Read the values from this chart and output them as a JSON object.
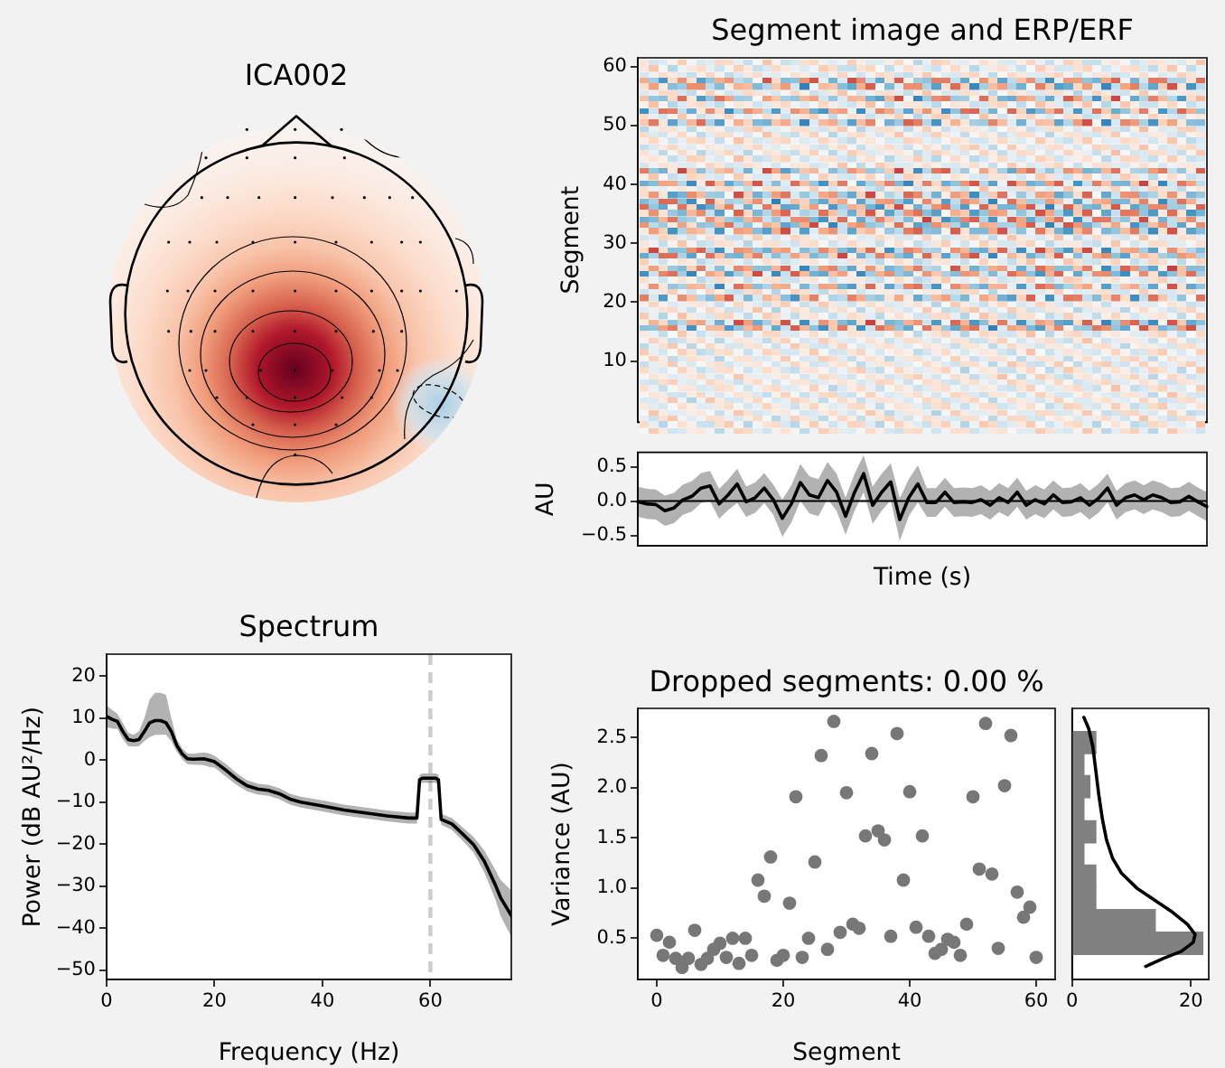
{
  "chart_data": [
    {
      "type": "other",
      "title": "ICA002"
    },
    {
      "type": "heatmap",
      "title": "Segment image and ERP/ERF",
      "ylabel": "Segment",
      "categories": [
        null
      ],
      "ylim": [
        -0.4,
        61.5
      ],
      "yticks": [
        10,
        20,
        30,
        40,
        50,
        60
      ]
    },
    {
      "type": "line",
      "xlabel": "Time (s)",
      "ylabel": "AU",
      "categories": [
        null,
        null,
        null,
        null,
        null,
        null,
        null,
        null,
        null,
        null,
        null,
        null,
        null,
        null,
        null,
        null,
        null,
        null,
        null,
        null,
        null,
        null,
        null,
        null,
        null,
        null,
        null,
        null,
        null,
        null,
        null,
        null,
        null,
        null,
        null,
        null,
        null,
        null,
        null,
        null,
        null,
        null,
        null,
        null,
        null,
        null,
        null,
        null,
        null,
        null,
        null,
        null,
        null,
        null,
        null,
        null,
        null,
        null,
        null,
        null,
        null,
        null,
        null,
        null
      ],
      "series": [
        {
          "color": "#000000",
          "values": [
            -0.01,
            -0.04,
            -0.05,
            -0.14,
            -0.1,
            0.02,
            0.07,
            0.19,
            0.22,
            -0.04,
            0.09,
            0.25,
            -0.01,
            0.05,
            0.19,
            0.02,
            -0.25,
            -0.04,
            0.27,
            0.09,
            0.05,
            0.3,
            0.13,
            -0.22,
            0.13,
            0.4,
            -0.06,
            0.13,
            0.28,
            -0.27,
            0.05,
            0.25,
            -0.02,
            -0.02,
            0.13,
            -0.02,
            -0.01,
            -0.02,
            0.02,
            -0.06,
            0.05,
            -0.02,
            0.13,
            -0.06,
            0.02,
            -0.04,
            0.09,
            -0.02,
            -0.01,
            0.05,
            -0.06,
            0.04,
            0.19,
            -0.06,
            0.05,
            0.09,
            0.02,
            0.09,
            0.05,
            -0.02,
            -0.01,
            0.07,
            -0.01,
            -0.08
          ],
          "upper": [
            0.21,
            0.18,
            0.17,
            0.08,
            0.12,
            0.24,
            0.29,
            0.41,
            0.44,
            0.18,
            0.31,
            0.47,
            0.21,
            0.27,
            0.41,
            0.24,
            0.02,
            0.23,
            0.54,
            0.36,
            0.32,
            0.57,
            0.4,
            0.05,
            0.4,
            0.67,
            0.21,
            0.4,
            0.55,
            0.04,
            0.32,
            0.52,
            0.19,
            0.19,
            0.34,
            0.19,
            0.2,
            0.19,
            0.23,
            0.15,
            0.26,
            0.19,
            0.34,
            0.15,
            0.23,
            0.17,
            0.3,
            0.19,
            0.2,
            0.26,
            0.15,
            0.25,
            0.4,
            0.15,
            0.26,
            0.3,
            0.23,
            0.3,
            0.26,
            0.19,
            0.2,
            0.28,
            0.2,
            0.13
          ],
          "lower": [
            -0.23,
            -0.26,
            -0.27,
            -0.36,
            -0.32,
            -0.2,
            -0.15,
            -0.03,
            0.0,
            -0.26,
            -0.13,
            -0.03,
            -0.23,
            -0.17,
            -0.03,
            -0.2,
            -0.52,
            -0.31,
            0.0,
            -0.18,
            -0.22,
            0.03,
            -0.14,
            -0.49,
            -0.14,
            0.13,
            -0.33,
            -0.14,
            0.01,
            -0.58,
            -0.22,
            -0.02,
            -0.23,
            -0.23,
            -0.08,
            -0.23,
            -0.22,
            -0.23,
            -0.19,
            -0.27,
            -0.16,
            -0.23,
            -0.08,
            -0.27,
            -0.19,
            -0.25,
            -0.12,
            -0.23,
            -0.22,
            -0.16,
            -0.27,
            -0.17,
            -0.02,
            -0.27,
            -0.16,
            -0.12,
            -0.19,
            -0.12,
            -0.16,
            -0.23,
            -0.22,
            -0.14,
            -0.22,
            -0.29
          ]
        }
      ],
      "ylim": [
        -0.65,
        0.71
      ],
      "yticks": [
        {
          "value": -0.5,
          "label": "−0.5"
        },
        {
          "value": 0,
          "label": "0.0"
        },
        0.5
      ],
      "ref_lines": [
        {
          "axis": "y",
          "value": 0,
          "color": "#000000"
        }
      ],
      "tick_labels": "y"
    },
    {
      "type": "line",
      "title": "Spectrum",
      "xlabel": "Frequency (Hz)",
      "ylabel": "Power (dB AU²/Hz)",
      "series": [
        {
          "color": "#000000",
          "x": [
            0,
            1,
            2,
            3,
            4,
            5,
            6,
            7,
            8,
            9,
            10,
            11,
            12,
            13,
            14,
            15,
            16,
            18,
            19,
            20,
            22,
            24,
            26,
            28,
            30,
            32,
            34,
            36,
            40,
            44,
            48,
            52,
            56,
            57.5,
            58,
            58.5,
            61,
            61.5,
            62,
            64,
            66,
            68,
            70,
            72,
            73,
            75
          ],
          "values": [
            10.4,
            9.7,
            9.2,
            6.8,
            4.9,
            4.6,
            4.9,
            6.8,
            8.9,
            9.4,
            9.4,
            8.9,
            6.8,
            3.5,
            1.5,
            0.3,
            0.2,
            0.3,
            0.0,
            -0.4,
            -2.3,
            -4.4,
            -6.1,
            -6.9,
            -7.2,
            -8.0,
            -9.3,
            -10.0,
            -10.9,
            -11.9,
            -12.6,
            -13.3,
            -13.8,
            -13.8,
            -4.7,
            -4.3,
            -4.3,
            -4.7,
            -14.1,
            -15.2,
            -17.6,
            -20.1,
            -24.1,
            -29.6,
            -32.7,
            -37.0
          ],
          "upper": [
            13.0,
            12.0,
            11.0,
            8.8,
            6.5,
            6.0,
            6.8,
            10.0,
            14.5,
            16.0,
            16.0,
            15.5,
            10.0,
            5.0,
            2.8,
            1.6,
            1.5,
            1.8,
            1.6,
            1.0,
            -0.8,
            -3.0,
            -4.8,
            -5.6,
            -5.9,
            -6.7,
            -8.0,
            -8.7,
            -9.6,
            -10.6,
            -11.3,
            -12.0,
            -12.5,
            -12.5,
            -3.5,
            -3.2,
            -3.2,
            -3.5,
            -12.8,
            -13.8,
            -16.0,
            -18.3,
            -21.5,
            -26.0,
            -28.5,
            -31.0
          ],
          "lower": [
            7.8,
            7.5,
            7.4,
            5.0,
            3.3,
            3.2,
            3.3,
            4.5,
            5.5,
            6.0,
            6.0,
            6.0,
            4.5,
            2.0,
            0.2,
            -1.0,
            -1.1,
            -1.2,
            -1.6,
            -1.8,
            -3.8,
            -5.8,
            -7.4,
            -8.2,
            -8.5,
            -9.3,
            -10.6,
            -11.3,
            -12.2,
            -13.2,
            -13.9,
            -14.6,
            -15.1,
            -15.1,
            -5.9,
            -5.4,
            -5.4,
            -5.9,
            -15.4,
            -16.6,
            -19.2,
            -22.0,
            -26.7,
            -33.0,
            -37.0,
            -42.1
          ]
        }
      ],
      "xlim": [
        0,
        75
      ],
      "xticks": [
        0,
        20,
        40,
        60
      ],
      "ylim": [
        -52.2,
        25.2
      ],
      "yticks": [
        {
          "value": -50,
          "label": "−50"
        },
        {
          "value": -40,
          "label": "−40"
        },
        {
          "value": -30,
          "label": "−30"
        },
        {
          "value": -20,
          "label": "−20"
        },
        {
          "value": -10,
          "label": "−10"
        },
        0,
        10,
        20
      ],
      "ref_lines": [
        {
          "axis": "x",
          "value": 60,
          "color": "#cccccc",
          "line_style": "dashed"
        }
      ]
    },
    {
      "type": "scatter",
      "title": "Dropped segments: 0.00 %",
      "xlabel": "Segment",
      "ylabel": "Variance (AU)",
      "x": [
        0,
        1,
        2,
        3,
        4,
        5,
        6,
        7,
        8,
        9,
        10,
        11,
        12,
        13,
        14,
        15,
        16,
        17,
        18,
        19,
        20,
        21,
        22,
        23,
        24,
        25,
        26,
        27,
        28,
        29,
        30,
        31,
        32,
        33,
        34,
        35,
        36,
        37,
        38,
        39,
        40,
        41,
        42,
        43,
        44,
        45,
        46,
        47,
        48,
        49,
        50,
        51,
        52,
        53,
        54,
        55,
        56,
        57,
        58,
        59,
        60
      ],
      "values": [
        0.53,
        0.33,
        0.46,
        0.3,
        0.21,
        0.3,
        0.58,
        0.24,
        0.3,
        0.39,
        0.45,
        0.31,
        0.5,
        0.25,
        0.5,
        0.33,
        1.08,
        0.92,
        1.31,
        0.28,
        0.33,
        0.85,
        1.91,
        0.31,
        0.5,
        1.26,
        2.32,
        0.39,
        2.66,
        0.56,
        1.95,
        0.64,
        0.6,
        1.52,
        2.34,
        1.57,
        1.48,
        0.52,
        2.54,
        1.08,
        1.96,
        0.61,
        1.52,
        0.52,
        0.35,
        0.39,
        0.49,
        0.46,
        0.33,
        0.64,
        1.91,
        1.19,
        2.64,
        1.14,
        0.4,
        2.02,
        2.52,
        0.96,
        0.71,
        0.81,
        0.31
      ],
      "color": "#777777",
      "marker": "circle",
      "xlim": [
        -3,
        63
      ],
      "xticks": [
        0,
        20,
        40,
        60
      ],
      "ylim": [
        0.09,
        2.79
      ],
      "yticks": [
        0.5,
        {
          "value": 1,
          "label": "1.0"
        },
        1.5,
        {
          "value": 2,
          "label": "2.0"
        },
        2.5
      ]
    },
    {
      "type": "histogram",
      "orientation": "horizontal",
      "bins": [
        0.34,
        0.56,
        0.79,
        1.01,
        1.23,
        1.45,
        1.67,
        1.9,
        2.12,
        2.34,
        2.56
      ],
      "series": [
        {
          "type": "histogram",
          "color": "#808080",
          "values": [
            22,
            14,
            4,
            4,
            2,
            4,
            2,
            3,
            2,
            4
          ]
        },
        {
          "type": "line",
          "color": "#000000",
          "x": [
            0.22,
            0.3,
            0.37,
            0.46,
            0.54,
            0.64,
            0.76,
            0.88,
            1.0,
            1.15,
            1.3,
            1.48,
            1.69,
            1.93,
            2.17,
            2.41,
            2.59,
            2.7
          ],
          "values": [
            12.4,
            15.4,
            18.4,
            20.4,
            20.7,
            19.4,
            16.9,
            13.9,
            10.9,
            8.3,
            6.8,
            5.8,
            5.1,
            4.5,
            4.0,
            3.5,
            2.8,
            2.0
          ]
        }
      ],
      "xlim": [
        0,
        23
      ],
      "xticks": [
        0,
        20
      ],
      "ylim": [
        0.09,
        2.79
      ],
      "tick_labels": "x"
    }
  ]
}
